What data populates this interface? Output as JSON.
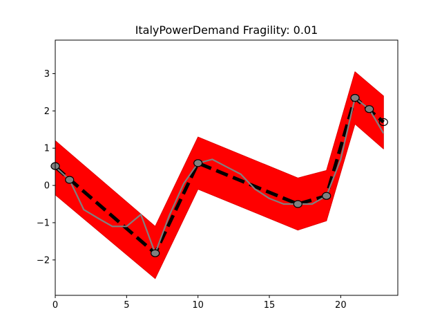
{
  "chart_data": {
    "type": "line",
    "title": "ItalyPowerDemand Fragility: 0.01",
    "xlabel": "",
    "ylabel": "",
    "xlim": [
      0,
      24
    ],
    "ylim": [
      -2.95,
      3.9
    ],
    "x_ticks": [
      0,
      5,
      10,
      15,
      20
    ],
    "x_tick_labels": [
      "0",
      "5",
      "10",
      "15",
      "20"
    ],
    "y_ticks": [
      -2,
      -1,
      0,
      1,
      2,
      3
    ],
    "y_tick_labels": [
      "−2",
      "−1",
      "0",
      "1",
      "2",
      "3"
    ],
    "grid": false,
    "colors": {
      "band": "#ff0000",
      "band_edge": "#e00000",
      "baseline": "#000000",
      "series": "#808080",
      "marker_fill": "#808080",
      "marker_edge": "#000000"
    },
    "band": {
      "x": [
        0,
        7,
        10,
        17,
        19,
        21,
        23
      ],
      "upper": [
        1.2,
        -1.1,
        1.3,
        0.2,
        0.4,
        3.05,
        2.4
      ],
      "lower": [
        -0.25,
        -2.5,
        -0.1,
        -1.2,
        -0.95,
        1.65,
        0.98
      ]
    },
    "series": [
      {
        "style": "dashed",
        "x": [
          0,
          7,
          10,
          17,
          19,
          21,
          23
        ],
        "y": [
          0.5,
          -1.82,
          0.6,
          -0.5,
          -0.28,
          2.35,
          1.7
        ]
      },
      {
        "style": "solid",
        "x": [
          0,
          1,
          2,
          3,
          4,
          5,
          6,
          7,
          8,
          9,
          10,
          11,
          12,
          13,
          14,
          15,
          16,
          17,
          18,
          19,
          20,
          21,
          22,
          23
        ],
        "y": [
          0.5,
          0.15,
          -0.65,
          -0.88,
          -1.1,
          -1.1,
          -0.78,
          -1.82,
          -0.8,
          0.05,
          0.6,
          0.7,
          0.5,
          0.3,
          -0.1,
          -0.35,
          -0.5,
          -0.5,
          -0.5,
          -0.28,
          0.7,
          2.35,
          2.05,
          1.4
        ]
      }
    ],
    "markers": [
      {
        "x": 0,
        "y": 0.52,
        "fill": "#808080"
      },
      {
        "x": 1,
        "y": 0.15,
        "fill": "#808080"
      },
      {
        "x": 7,
        "y": -1.82,
        "fill": "#808080"
      },
      {
        "x": 10,
        "y": 0.6,
        "fill": "#808080"
      },
      {
        "x": 17,
        "y": -0.5,
        "fill": "#808080"
      },
      {
        "x": 19,
        "y": -0.28,
        "fill": "#808080"
      },
      {
        "x": 21,
        "y": 2.35,
        "fill": "#808080"
      },
      {
        "x": 22,
        "y": 2.05,
        "fill": "#808080"
      },
      {
        "x": 23,
        "y": 1.7,
        "fill": "none"
      }
    ]
  }
}
